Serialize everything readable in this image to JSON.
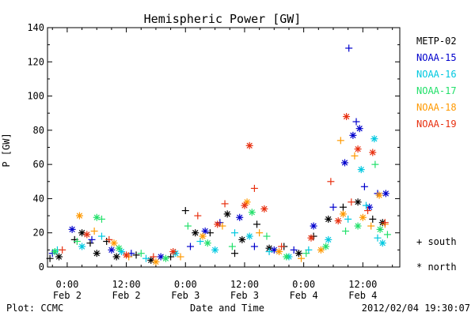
{
  "chart_data": {
    "type": "scatter",
    "title": "Hemispheric Power [GW]",
    "ylabel": "P [GW]",
    "xlabel": "Date and Time",
    "ylim": [
      0,
      140
    ],
    "yticks": [
      0,
      20,
      40,
      60,
      80,
      100,
      120,
      140
    ],
    "xlim": [
      "2012-02-01 20:00",
      "2012-02-04 19:30"
    ],
    "xticks": [
      {
        "time": "2012-02-02 00:00",
        "line1": "0:00",
        "line2": "Feb 2"
      },
      {
        "time": "2012-02-02 12:00",
        "line1": "12:00",
        "line2": "Feb 2"
      },
      {
        "time": "2012-02-03 00:00",
        "line1": "0:00",
        "line2": "Feb 3"
      },
      {
        "time": "2012-02-03 12:00",
        "line1": "12:00",
        "line2": "Feb 3"
      },
      {
        "time": "2012-02-04 00:00",
        "line1": "0:00",
        "line2": "Feb 4"
      },
      {
        "time": "2012-02-04 12:00",
        "line1": "12:00",
        "line2": "Feb 4"
      }
    ],
    "grid": false,
    "legend_position": "right",
    "marker_legend": [
      {
        "symbol": "+",
        "label": "south"
      },
      {
        "symbol": "*",
        "label": "north"
      }
    ],
    "series": [
      {
        "name": "METP-02",
        "color": "#000000",
        "points": [
          [
            "2012-02-01 20:30",
            5,
            "+"
          ],
          [
            "2012-02-01 22:20",
            6,
            "*"
          ],
          [
            "2012-02-02 01:30",
            16,
            "+"
          ],
          [
            "2012-02-02 03:00",
            20,
            "*"
          ],
          [
            "2012-02-02 04:40",
            14,
            "+"
          ],
          [
            "2012-02-02 06:00",
            8,
            "*"
          ],
          [
            "2012-02-02 08:00",
            15,
            "+"
          ],
          [
            "2012-02-02 10:00",
            6,
            "*"
          ],
          [
            "2012-02-02 14:00",
            7,
            "+"
          ],
          [
            "2012-02-02 17:00",
            4,
            "*"
          ],
          [
            "2012-02-02 21:00",
            6,
            "+"
          ],
          [
            "2012-02-03 00:00",
            33,
            "+"
          ],
          [
            "2012-02-03 02:00",
            20,
            "*"
          ],
          [
            "2012-02-03 05:00",
            20,
            "+"
          ],
          [
            "2012-02-03 08:30",
            31,
            "*"
          ],
          [
            "2012-02-03 10:00",
            8,
            "+"
          ],
          [
            "2012-02-03 11:30",
            16,
            "*"
          ],
          [
            "2012-02-03 14:30",
            25,
            "+"
          ],
          [
            "2012-02-03 17:00",
            11,
            "*"
          ],
          [
            "2012-02-03 20:00",
            12,
            "+"
          ],
          [
            "2012-02-03 23:00",
            8,
            "*"
          ],
          [
            "2012-02-04 02:00",
            18,
            "+"
          ],
          [
            "2012-02-04 05:00",
            28,
            "*"
          ],
          [
            "2012-02-04 08:00",
            35,
            "+"
          ],
          [
            "2012-02-04 11:00",
            38,
            "*"
          ],
          [
            "2012-02-04 14:00",
            28,
            "+"
          ],
          [
            "2012-02-04 16:00",
            26,
            "*"
          ]
        ]
      },
      {
        "name": "NOAA-15",
        "color": "#0000cc",
        "points": [
          [
            "2012-02-01 21:00",
            8,
            "+"
          ],
          [
            "2012-02-02 01:00",
            22,
            "*"
          ],
          [
            "2012-02-02 05:00",
            16,
            "+"
          ],
          [
            "2012-02-02 09:00",
            10,
            "*"
          ],
          [
            "2012-02-02 13:00",
            8,
            "+"
          ],
          [
            "2012-02-02 19:00",
            6,
            "*"
          ],
          [
            "2012-02-03 01:00",
            12,
            "+"
          ],
          [
            "2012-02-03 04:00",
            21,
            "*"
          ],
          [
            "2012-02-03 07:00",
            26,
            "+"
          ],
          [
            "2012-02-03 11:00",
            29,
            "*"
          ],
          [
            "2012-02-03 14:00",
            12,
            "+"
          ],
          [
            "2012-02-03 18:00",
            10,
            "*"
          ],
          [
            "2012-02-03 22:00",
            10,
            "+"
          ],
          [
            "2012-02-04 02:00",
            24,
            "*"
          ],
          [
            "2012-02-04 06:00",
            35,
            "+"
          ],
          [
            "2012-02-04 08:20",
            61,
            "*"
          ],
          [
            "2012-02-04 09:10",
            128,
            "+"
          ],
          [
            "2012-02-04 10:00",
            77,
            "*"
          ],
          [
            "2012-02-04 10:40",
            85,
            "+"
          ],
          [
            "2012-02-04 11:20",
            81,
            "*"
          ],
          [
            "2012-02-04 12:20",
            47,
            "+"
          ],
          [
            "2012-02-04 13:20",
            35,
            "*"
          ],
          [
            "2012-02-04 15:00",
            43,
            "+"
          ],
          [
            "2012-02-04 16:40",
            43,
            "*"
          ]
        ]
      },
      {
        "name": "NOAA-16",
        "color": "#00c8e0",
        "points": [
          [
            "2012-02-01 22:00",
            10,
            "+"
          ],
          [
            "2012-02-02 03:00",
            12,
            "*"
          ],
          [
            "2012-02-02 07:00",
            18,
            "+"
          ],
          [
            "2012-02-02 11:00",
            9,
            "*"
          ],
          [
            "2012-02-02 16:00",
            5,
            "+"
          ],
          [
            "2012-02-02 22:00",
            8,
            "*"
          ],
          [
            "2012-02-03 03:00",
            15,
            "+"
          ],
          [
            "2012-02-03 06:00",
            10,
            "*"
          ],
          [
            "2012-02-03 10:00",
            20,
            "+"
          ],
          [
            "2012-02-03 13:00",
            18,
            "*"
          ],
          [
            "2012-02-03 17:00",
            9,
            "+"
          ],
          [
            "2012-02-03 21:00",
            6,
            "*"
          ],
          [
            "2012-02-04 01:00",
            10,
            "+"
          ],
          [
            "2012-02-04 05:00",
            16,
            "*"
          ],
          [
            "2012-02-04 09:00",
            28,
            "+"
          ],
          [
            "2012-02-04 11:40",
            57,
            "*"
          ],
          [
            "2012-02-04 12:40",
            36,
            "+"
          ],
          [
            "2012-02-04 14:20",
            75,
            "*"
          ],
          [
            "2012-02-04 15:00",
            17,
            "+"
          ],
          [
            "2012-02-04 16:00",
            14,
            "*"
          ]
        ]
      },
      {
        "name": "NOAA-17",
        "color": "#22e06a",
        "points": [
          [
            "2012-02-01 21:30",
            9,
            "*"
          ],
          [
            "2012-02-02 02:00",
            15,
            "+"
          ],
          [
            "2012-02-02 06:00",
            29,
            "*"
          ],
          [
            "2012-02-02 07:00",
            28,
            "+"
          ],
          [
            "2012-02-02 10:30",
            11,
            "*"
          ],
          [
            "2012-02-02 15:00",
            8,
            "+"
          ],
          [
            "2012-02-02 20:00",
            5,
            "*"
          ],
          [
            "2012-02-03 00:30",
            24,
            "+"
          ],
          [
            "2012-02-03 04:30",
            14,
            "*"
          ],
          [
            "2012-02-03 09:30",
            12,
            "+"
          ],
          [
            "2012-02-03 13:30",
            32,
            "*"
          ],
          [
            "2012-02-03 16:30",
            18,
            "+"
          ],
          [
            "2012-02-03 20:30",
            6,
            "*"
          ],
          [
            "2012-02-04 00:30",
            8,
            "+"
          ],
          [
            "2012-02-04 04:30",
            12,
            "*"
          ],
          [
            "2012-02-04 08:30",
            21,
            "+"
          ],
          [
            "2012-02-04 11:00",
            24,
            "*"
          ],
          [
            "2012-02-04 14:30",
            60,
            "+"
          ],
          [
            "2012-02-04 15:30",
            22,
            "*"
          ],
          [
            "2012-02-04 17:00",
            19,
            "+"
          ]
        ]
      },
      {
        "name": "NOAA-18",
        "color": "#ff9900",
        "points": [
          [
            "2012-02-02 02:30",
            30,
            "*"
          ],
          [
            "2012-02-02 05:30",
            21,
            "+"
          ],
          [
            "2012-02-02 09:30",
            14,
            "*"
          ],
          [
            "2012-02-02 12:30",
            6,
            "+"
          ],
          [
            "2012-02-02 18:00",
            3,
            "*"
          ],
          [
            "2012-02-02 23:00",
            6,
            "+"
          ],
          [
            "2012-02-03 03:30",
            18,
            "*"
          ],
          [
            "2012-02-03 07:30",
            24,
            "+"
          ],
          [
            "2012-02-03 12:30",
            38,
            "*"
          ],
          [
            "2012-02-03 15:00",
            20,
            "+"
          ],
          [
            "2012-02-03 19:00",
            9,
            "*"
          ],
          [
            "2012-02-03 23:30",
            5,
            "+"
          ],
          [
            "2012-02-04 03:30",
            10,
            "*"
          ],
          [
            "2012-02-04 07:30",
            74,
            "+"
          ],
          [
            "2012-02-04 08:00",
            31,
            "*"
          ],
          [
            "2012-02-04 10:20",
            65,
            "+"
          ],
          [
            "2012-02-04 12:00",
            29,
            "*"
          ],
          [
            "2012-02-04 13:40",
            24,
            "+"
          ],
          [
            "2012-02-04 15:20",
            42,
            "*"
          ],
          [
            "2012-02-04 16:30",
            25,
            "+"
          ]
        ]
      },
      {
        "name": "NOAA-19",
        "color": "#e83010",
        "points": [
          [
            "2012-02-01 23:00",
            10,
            "+"
          ],
          [
            "2012-02-02 04:00",
            19,
            "*"
          ],
          [
            "2012-02-02 08:30",
            16,
            "+"
          ],
          [
            "2012-02-02 12:00",
            7,
            "*"
          ],
          [
            "2012-02-02 17:30",
            6,
            "+"
          ],
          [
            "2012-02-02 21:30",
            9,
            "*"
          ],
          [
            "2012-02-03 02:30",
            30,
            "+"
          ],
          [
            "2012-02-03 06:30",
            25,
            "*"
          ],
          [
            "2012-02-03 08:00",
            37,
            "+"
          ],
          [
            "2012-02-03 12:00",
            36,
            "*"
          ],
          [
            "2012-02-03 13:00",
            71,
            "*"
          ],
          [
            "2012-02-03 14:00",
            46,
            "+"
          ],
          [
            "2012-02-03 16:00",
            34,
            "*"
          ],
          [
            "2012-02-03 19:30",
            12,
            "+"
          ],
          [
            "2012-02-04 01:30",
            17,
            "*"
          ],
          [
            "2012-02-04 05:30",
            50,
            "+"
          ],
          [
            "2012-02-04 07:00",
            27,
            "*"
          ],
          [
            "2012-02-04 08:40",
            88,
            "*"
          ],
          [
            "2012-02-04 09:40",
            38,
            "+"
          ],
          [
            "2012-02-04 11:00",
            69,
            "*"
          ],
          [
            "2012-02-04 13:00",
            33,
            "+"
          ],
          [
            "2012-02-04 14:00",
            67,
            "*"
          ],
          [
            "2012-02-04 16:30",
            26,
            "+"
          ]
        ]
      }
    ]
  },
  "footer": {
    "left": "Plot: CCMC",
    "right": "2012/02/04 19:30:07"
  }
}
